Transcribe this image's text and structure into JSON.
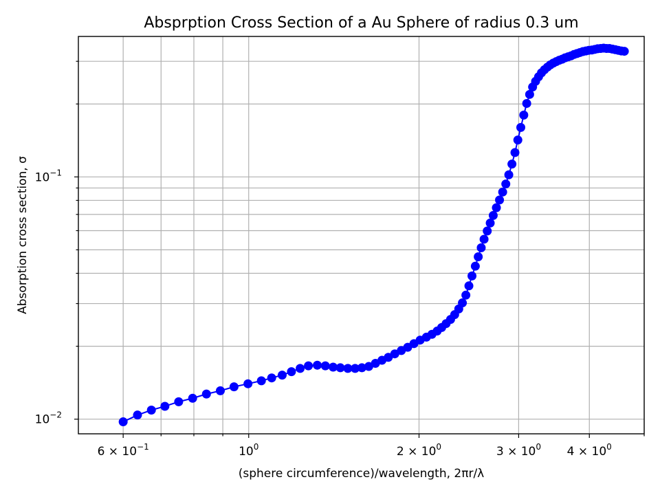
{
  "chart_data": {
    "type": "line",
    "title": "Absprption Cross Section of a Au Sphere of radius 0.3 um",
    "xlabel": "(sphere circumference)/wavelength, 2πr/λ",
    "ylabel": "Absorption cross section, σ",
    "xscale": "log",
    "yscale": "log",
    "xlim": [
      0.5,
      5.0
    ],
    "ylim": [
      0.0087,
      0.38
    ],
    "grid": true,
    "marker": "circle",
    "color": "#0000ff",
    "x_ticks": [
      {
        "value": 0.6,
        "label": "6 × 10",
        "exp": "−1"
      },
      {
        "value": 1.0,
        "label": "10",
        "exp": "0"
      },
      {
        "value": 2.0,
        "label": "2 × 10",
        "exp": "0"
      },
      {
        "value": 3.0,
        "label": "3 × 10",
        "exp": "0"
      },
      {
        "value": 4.0,
        "label": "4 × 10",
        "exp": "0"
      }
    ],
    "y_ticks": [
      {
        "value": 0.01,
        "label": "10",
        "exp": "−2"
      },
      {
        "value": 0.1,
        "label": "10",
        "exp": "−1"
      }
    ],
    "x_minor_ticks": [
      0.7,
      0.8,
      0.9,
      5.0
    ],
    "y_minor_ticks": [
      0.02,
      0.03,
      0.04,
      0.05,
      0.06,
      0.07,
      0.08,
      0.09,
      0.2,
      0.3
    ],
    "series": [
      {
        "x": [
          0.6,
          0.636,
          0.673,
          0.711,
          0.752,
          0.796,
          0.842,
          0.891,
          0.942,
          0.997,
          1.053,
          1.098,
          1.146,
          1.19,
          1.233,
          1.275,
          1.322,
          1.366,
          1.41,
          1.452,
          1.497,
          1.542,
          1.585,
          1.63,
          1.675,
          1.72,
          1.765,
          1.812,
          1.861,
          1.91,
          1.959,
          2.009,
          2.061,
          2.108,
          2.153,
          2.193,
          2.233,
          2.274,
          2.312,
          2.351,
          2.386,
          2.42,
          2.45,
          2.481,
          2.515,
          2.545,
          2.576,
          2.606,
          2.64,
          2.672,
          2.705,
          2.74,
          2.775,
          2.811,
          2.847,
          2.882,
          2.919,
          2.955,
          2.99,
          3.026,
          3.063,
          3.1,
          3.137,
          3.175,
          3.214,
          3.253,
          3.292,
          3.332,
          3.373,
          3.412,
          3.454,
          3.495,
          3.538,
          3.58,
          3.623,
          3.668,
          3.712,
          3.757,
          3.802,
          3.848,
          3.896,
          3.943,
          3.99,
          4.04,
          4.089,
          4.137,
          4.188,
          4.239,
          4.29,
          4.34,
          4.393,
          4.446,
          4.5,
          4.556,
          4.612
        ],
        "y": [
          0.00975,
          0.0104,
          0.0109,
          0.0113,
          0.0118,
          0.0122,
          0.0127,
          0.0131,
          0.0136,
          0.014,
          0.0144,
          0.0148,
          0.0152,
          0.0157,
          0.0162,
          0.0166,
          0.0167,
          0.0166,
          0.0164,
          0.0163,
          0.0162,
          0.0162,
          0.0163,
          0.0165,
          0.017,
          0.0175,
          0.018,
          0.0186,
          0.0192,
          0.0198,
          0.0205,
          0.0212,
          0.0218,
          0.0224,
          0.0231,
          0.0239,
          0.0248,
          0.0258,
          0.027,
          0.0285,
          0.0302,
          0.0325,
          0.0355,
          0.039,
          0.0428,
          0.0468,
          0.051,
          0.0553,
          0.0598,
          0.0645,
          0.0693,
          0.0746,
          0.0803,
          0.0866,
          0.0935,
          0.102,
          0.113,
          0.126,
          0.142,
          0.16,
          0.18,
          0.201,
          0.219,
          0.235,
          0.248,
          0.259,
          0.269,
          0.277,
          0.284,
          0.29,
          0.295,
          0.299,
          0.303,
          0.306,
          0.31,
          0.313,
          0.316,
          0.32,
          0.323,
          0.326,
          0.329,
          0.331,
          0.333,
          0.334,
          0.336,
          0.338,
          0.339,
          0.34,
          0.339,
          0.339,
          0.337,
          0.335,
          0.333,
          0.331,
          0.33
        ]
      }
    ]
  }
}
